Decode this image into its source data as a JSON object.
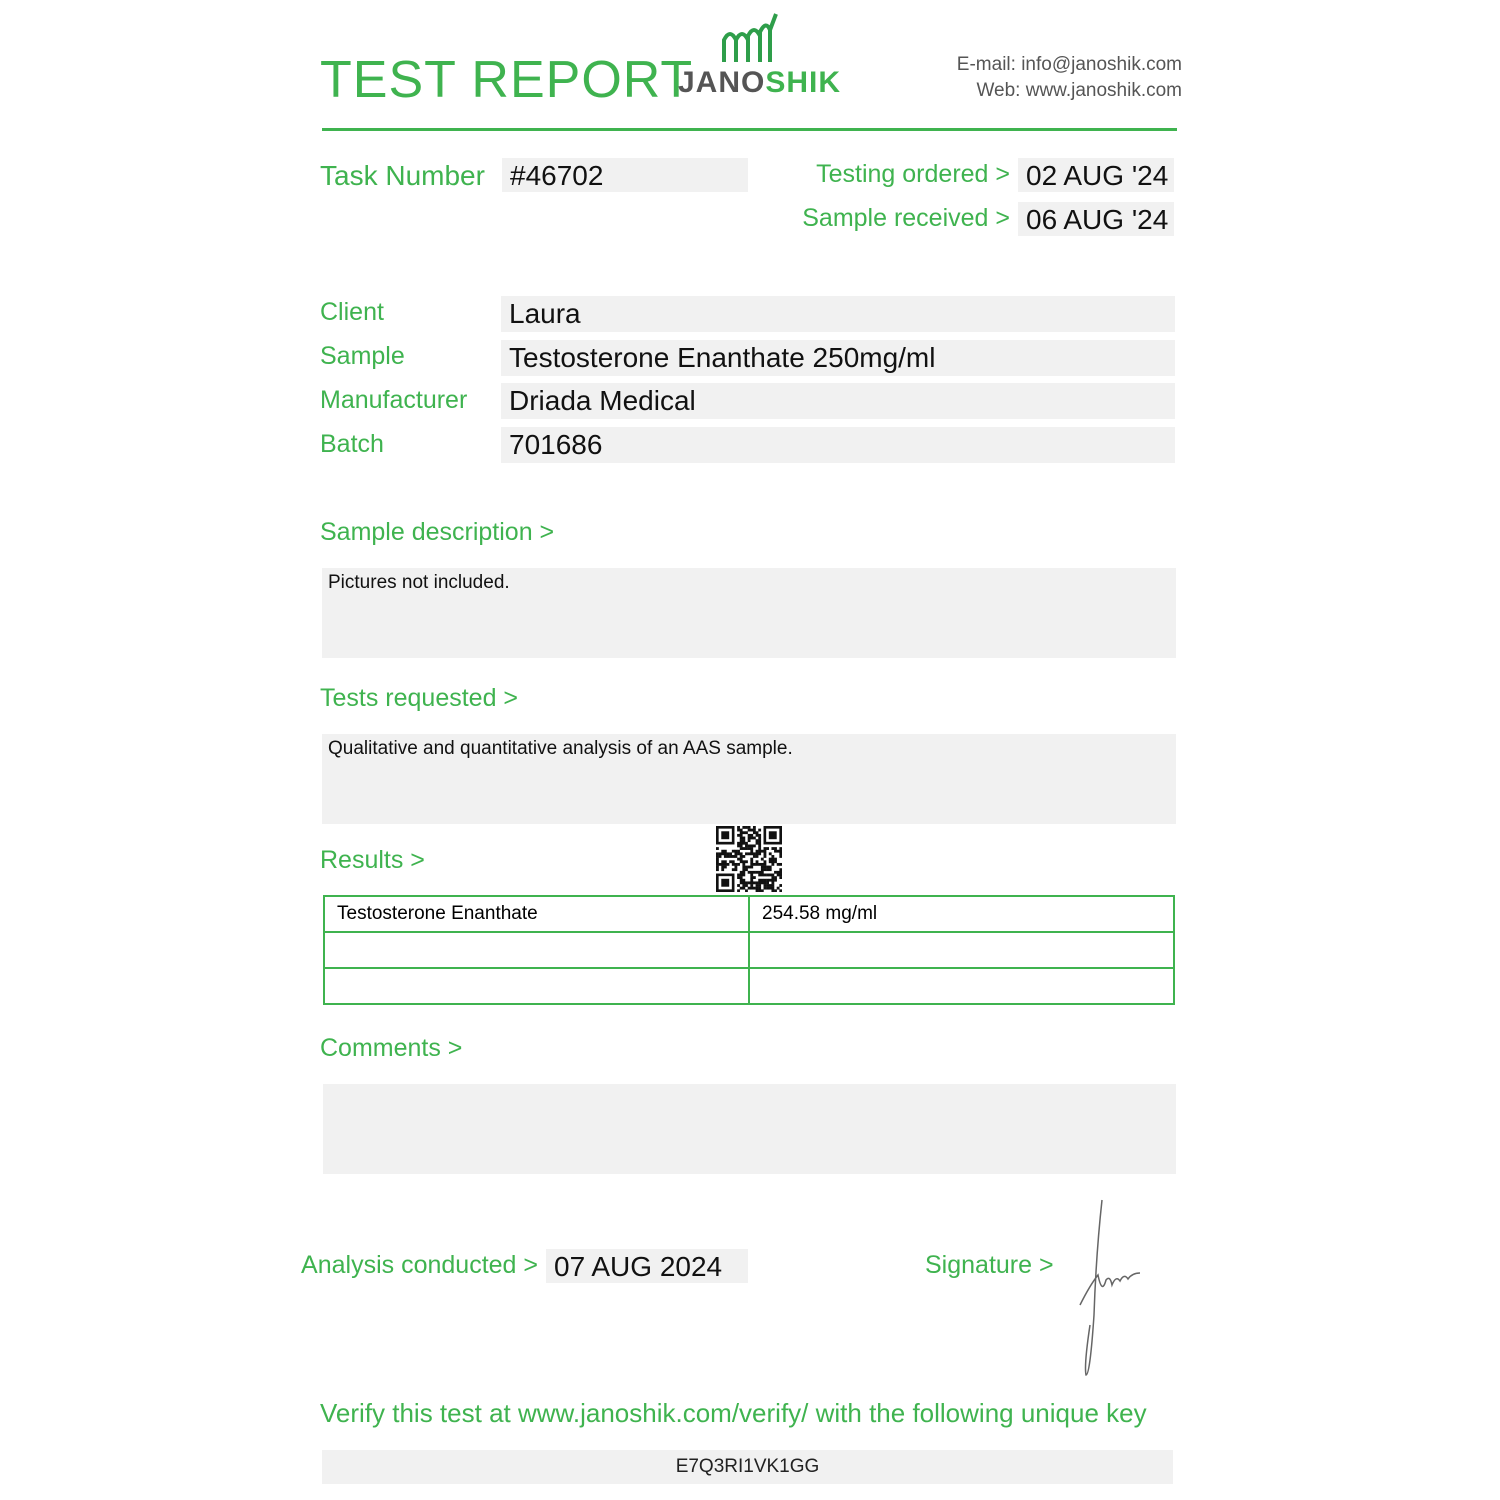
{
  "header": {
    "title": "TEST REPORT",
    "logo_text_a": "JANO",
    "logo_text_b": "SHIK",
    "email": "E-mail: info@janoshik.com",
    "web": "Web: www.janoshik.com"
  },
  "task": {
    "label": "Task Number",
    "value": "#46702"
  },
  "dates": {
    "ordered_label": "Testing ordered  >",
    "ordered": "02 AUG '24",
    "received_label": "Sample received >",
    "received": "06 AUG '24"
  },
  "fields": [
    {
      "label": "Client",
      "value": "Laura"
    },
    {
      "label": "Sample",
      "value": "Testosterone Enanthate 250mg/ml"
    },
    {
      "label": "Manufacturer",
      "value": "Driada Medical"
    },
    {
      "label": "Batch",
      "value": "701686"
    }
  ],
  "description": {
    "label": "Sample description >",
    "text": "Pictures not included."
  },
  "tests": {
    "label": "Tests requested >",
    "text": "Qualitative and quantitative analysis of an AAS sample."
  },
  "results": {
    "label": "Results >",
    "rows": [
      [
        "Testosterone Enanthate",
        "254.58 mg/ml"
      ],
      [
        "",
        ""
      ],
      [
        "",
        ""
      ]
    ]
  },
  "comments": {
    "label": "Comments >",
    "text": ""
  },
  "analysis": {
    "label": "Analysis conducted >",
    "date": "07 AUG 2024"
  },
  "signature": {
    "label": "Signature >"
  },
  "verify": {
    "text": "Verify this test at www.janoshik.com/verify/ with the following unique key",
    "key": "E7Q3RI1VK1GG"
  },
  "colors": {
    "accent": "#3fb34f",
    "field_bg": "#f1f1f1"
  }
}
